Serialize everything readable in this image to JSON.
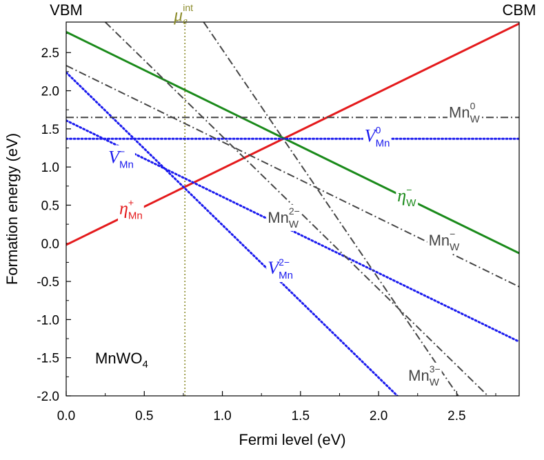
{
  "chart_data": {
    "type": "line",
    "xlabel": "Fermi level (eV)",
    "ylabel": "Formation energy (eV)",
    "xlim": [
      0,
      2.9
    ],
    "ylim": [
      -2.0,
      2.9
    ],
    "xticks": [
      "0.0",
      "0.5",
      "1.0",
      "1.5",
      "2.0",
      "2.5"
    ],
    "yticks": [
      "-2.0",
      "-1.5",
      "-1.0",
      "-0.5",
      "0.0",
      "0.5",
      "1.0",
      "1.5",
      "2.0",
      "2.5"
    ],
    "corner_left": "VBM",
    "corner_right": "CBM",
    "material": {
      "main": "MnWO",
      "sub": "4"
    },
    "fermi_marker": {
      "x": 0.76,
      "base": "μ",
      "sub": "e",
      "sup": "int",
      "color": "#8b8b2a"
    },
    "series": [
      {
        "name": "eta_Mn_plus",
        "color": "#e41a1c",
        "style": "solid",
        "width": 3,
        "x": [
          0,
          2.9
        ],
        "y": [
          -0.02,
          2.88
        ]
      },
      {
        "name": "eta_W_minus",
        "color": "#1a8a1a",
        "style": "solid",
        "width": 3,
        "x": [
          0,
          2.9
        ],
        "y": [
          2.77,
          -0.13
        ]
      },
      {
        "name": "V_Mn_0",
        "color": "#1a1aee",
        "style": "dot",
        "width": 3,
        "x": [
          0,
          2.9
        ],
        "y": [
          1.37,
          1.37
        ]
      },
      {
        "name": "V_Mn_minus",
        "color": "#1a1aee",
        "style": "dot",
        "width": 3,
        "x": [
          0,
          2.9
        ],
        "y": [
          1.61,
          -1.29
        ]
      },
      {
        "name": "V_Mn_2minus",
        "color": "#1a1aee",
        "style": "dot",
        "width": 3,
        "x": [
          0,
          2.12
        ],
        "y": [
          2.24,
          -2.0
        ]
      },
      {
        "name": "Mn_W_0",
        "color": "#444444",
        "style": "dashdot",
        "width": 2,
        "x": [
          0,
          2.9
        ],
        "y": [
          1.65,
          1.65
        ]
      },
      {
        "name": "Mn_W_minus",
        "color": "#444444",
        "style": "dashdot",
        "width": 2,
        "x": [
          0,
          2.9
        ],
        "y": [
          2.33,
          -0.57
        ]
      },
      {
        "name": "Mn_W_2minus",
        "color": "#444444",
        "style": "dashdot",
        "width": 2,
        "x": [
          0.25,
          2.7
        ],
        "y": [
          2.9,
          -2.0
        ]
      },
      {
        "name": "Mn_W_3minus",
        "color": "#444444",
        "style": "dashdot",
        "width": 2,
        "x": [
          0.88,
          2.51
        ],
        "y": [
          2.9,
          -2.0
        ]
      }
    ],
    "labels": [
      {
        "id": "eta-mn",
        "x": 0.34,
        "y": 0.38,
        "base": "η",
        "sub": "Mn",
        "sup": "+",
        "color": "#e41a1c",
        "italic": true
      },
      {
        "id": "eta-w",
        "x": 2.12,
        "y": 0.55,
        "base": "η",
        "sub": "W",
        "sup": "−",
        "color": "#1a8a1a",
        "italic": true
      },
      {
        "id": "v-mn-0",
        "x": 1.91,
        "y": 1.33,
        "base": "V",
        "sub": "Mn",
        "sup": "0",
        "color": "#1a1aee",
        "italic": true
      },
      {
        "id": "v-mn-minus",
        "x": 0.27,
        "y": 1.05,
        "base": "V",
        "sub": "Mn",
        "sup": "−",
        "color": "#1a1aee",
        "italic": true
      },
      {
        "id": "v-mn-2minus",
        "x": 1.29,
        "y": -0.4,
        "base": "V",
        "sub": "Mn",
        "sup": "2−",
        "color": "#1a1aee",
        "italic": true
      },
      {
        "id": "mn-w-0",
        "x": 2.45,
        "y": 1.65,
        "base": "Mn",
        "sub": "W",
        "sup": "0",
        "color": "#444444",
        "italic": false
      },
      {
        "id": "mn-w-minus",
        "x": 2.32,
        "y": -0.03,
        "base": "Mn",
        "sub": "W",
        "sup": "−",
        "color": "#444444",
        "italic": false
      },
      {
        "id": "mn-w-2minus",
        "x": 1.29,
        "y": 0.27,
        "base": "Mn",
        "sub": "W",
        "sup": "2−",
        "color": "#444444",
        "italic": false
      },
      {
        "id": "mn-w-3minus",
        "x": 2.19,
        "y": -1.8,
        "base": "Mn",
        "sub": "W",
        "sup": "3−",
        "color": "#444444",
        "italic": false
      }
    ]
  }
}
